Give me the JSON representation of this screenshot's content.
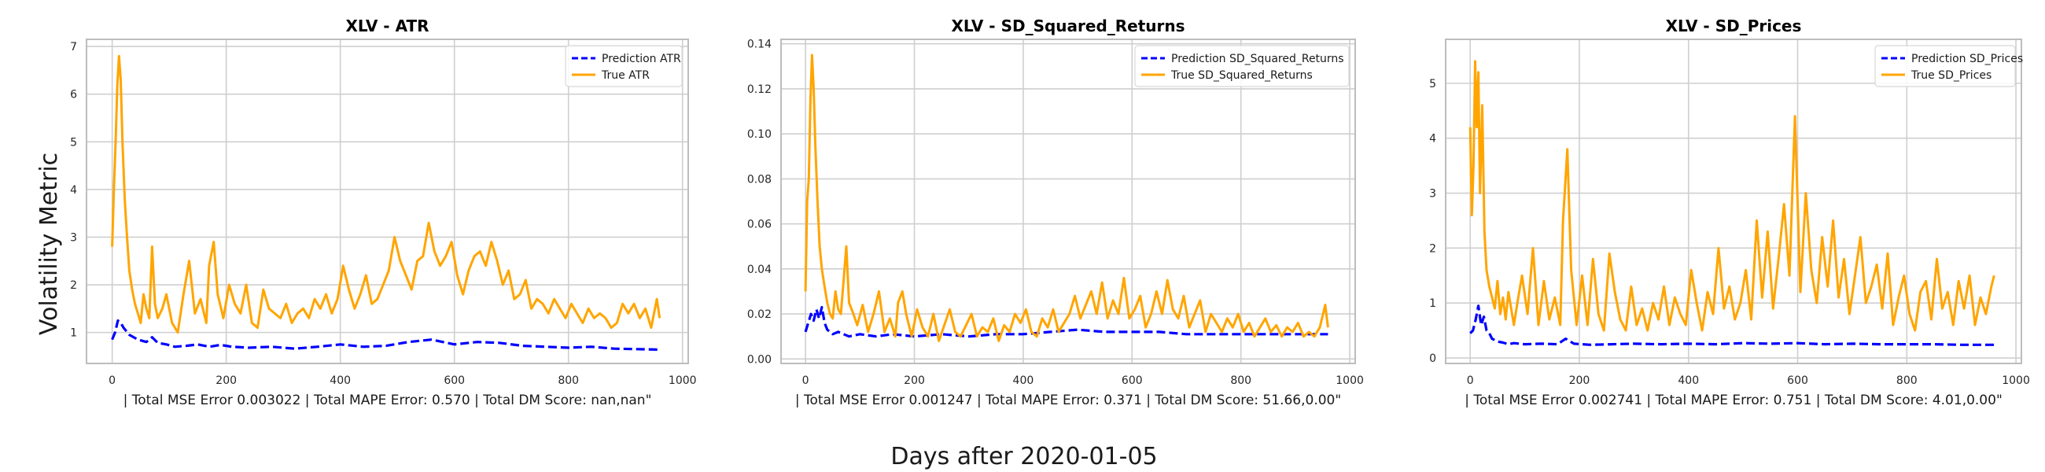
{
  "figure": {
    "ylabel": "Volatility Metric",
    "xlabel": "Days after 2020-01-05"
  },
  "colors": {
    "prediction": "#0000ff",
    "true": "#ffa500",
    "grid": "#cfcfcf",
    "spine": "#bdbdbd",
    "background": "#ffffff"
  },
  "chart_data": [
    {
      "type": "line",
      "title": "XLV - ATR",
      "xlabel": "| Total MSE Error 0.003022 | Total MAPE Error: 0.570 | Total DM Score: nan,nan\"",
      "ylabel": "",
      "xlim": [
        -45,
        1010
      ],
      "ylim": [
        0.35,
        7.15
      ],
      "xticks": [
        0,
        200,
        400,
        600,
        800,
        1000
      ],
      "yticks": [
        1,
        2,
        3,
        4,
        5,
        6,
        7
      ],
      "grid": true,
      "legend_position": "upper right",
      "series": [
        {
          "name": "Prediction ATR",
          "style": "dashed",
          "color": "#0000ff",
          "x": [
            0,
            5,
            10,
            15,
            20,
            30,
            45,
            60,
            70,
            80,
            95,
            110,
            130,
            150,
            170,
            190,
            210,
            240,
            280,
            320,
            360,
            400,
            440,
            480,
            520,
            560,
            600,
            640,
            680,
            720,
            760,
            800,
            840,
            880,
            920,
            960
          ],
          "y": [
            0.85,
            1.0,
            1.25,
            1.2,
            1.1,
            0.95,
            0.85,
            0.8,
            0.9,
            0.78,
            0.75,
            0.7,
            0.72,
            0.75,
            0.7,
            0.74,
            0.7,
            0.68,
            0.7,
            0.66,
            0.7,
            0.75,
            0.7,
            0.72,
            0.8,
            0.85,
            0.75,
            0.8,
            0.78,
            0.72,
            0.7,
            0.68,
            0.7,
            0.66,
            0.65,
            0.64
          ]
        },
        {
          "name": "True ATR",
          "style": "solid",
          "color": "#ffa500",
          "x": [
            0,
            3,
            6,
            9,
            12,
            15,
            18,
            22,
            26,
            30,
            35,
            40,
            45,
            50,
            55,
            60,
            65,
            70,
            75,
            80,
            88,
            95,
            105,
            115,
            125,
            135,
            145,
            155,
            165,
            170,
            178,
            185,
            195,
            205,
            215,
            225,
            235,
            245,
            255,
            265,
            275,
            285,
            295,
            305,
            315,
            325,
            335,
            345,
            355,
            365,
            375,
            385,
            395,
            405,
            415,
            425,
            435,
            445,
            455,
            465,
            475,
            485,
            495,
            505,
            515,
            525,
            535,
            545,
            555,
            565,
            575,
            585,
            595,
            605,
            615,
            625,
            635,
            645,
            655,
            665,
            675,
            685,
            695,
            705,
            715,
            725,
            735,
            745,
            755,
            765,
            775,
            785,
            795,
            805,
            815,
            825,
            835,
            845,
            855,
            865,
            875,
            885,
            895,
            905,
            915,
            925,
            935,
            945,
            955,
            960
          ],
          "y": [
            2.8,
            4.0,
            5.0,
            6.2,
            6.8,
            6.3,
            5.0,
            3.8,
            3.0,
            2.3,
            1.9,
            1.6,
            1.4,
            1.2,
            1.8,
            1.5,
            1.3,
            2.8,
            1.6,
            1.3,
            1.5,
            1.8,
            1.2,
            1.0,
            1.8,
            2.5,
            1.4,
            1.7,
            1.2,
            2.4,
            2.9,
            1.8,
            1.3,
            2.0,
            1.6,
            1.4,
            2.0,
            1.2,
            1.1,
            1.9,
            1.5,
            1.4,
            1.3,
            1.6,
            1.2,
            1.4,
            1.5,
            1.3,
            1.7,
            1.5,
            1.8,
            1.4,
            1.7,
            2.4,
            1.9,
            1.5,
            1.8,
            2.2,
            1.6,
            1.7,
            2.0,
            2.3,
            3.0,
            2.5,
            2.2,
            1.9,
            2.5,
            2.6,
            3.3,
            2.7,
            2.4,
            2.6,
            2.9,
            2.2,
            1.8,
            2.3,
            2.6,
            2.7,
            2.4,
            2.9,
            2.5,
            2.0,
            2.3,
            1.7,
            1.8,
            2.1,
            1.5,
            1.7,
            1.6,
            1.4,
            1.7,
            1.5,
            1.3,
            1.6,
            1.4,
            1.2,
            1.5,
            1.3,
            1.4,
            1.3,
            1.1,
            1.2,
            1.6,
            1.4,
            1.6,
            1.3,
            1.5,
            1.1,
            1.7,
            1.3
          ]
        }
      ]
    },
    {
      "type": "line",
      "title": "XLV - SD_Squared_Returns",
      "xlabel": "| Total MSE Error 0.001247 | Total MAPE Error: 0.371 | Total DM Score: 51.66,0.00\"",
      "ylabel": "",
      "xlim": [
        -45,
        1010
      ],
      "ylim": [
        -0.002,
        0.142
      ],
      "xticks": [
        0,
        200,
        400,
        600,
        800,
        1000
      ],
      "yticks": [
        0.0,
        0.02,
        0.04,
        0.06,
        0.08,
        0.1,
        0.12,
        0.14
      ],
      "ytick_labels": [
        "0.00",
        "0.02",
        "0.04",
        "0.06",
        "0.08",
        "0.10",
        "0.12",
        "0.14"
      ],
      "grid": true,
      "legend_position": "upper right",
      "series": [
        {
          "name": "Prediction SD_Squared_Returns",
          "style": "dashed",
          "color": "#0000ff",
          "x": [
            0,
            5,
            10,
            15,
            20,
            25,
            30,
            35,
            40,
            50,
            60,
            70,
            80,
            100,
            130,
            160,
            200,
            250,
            300,
            350,
            400,
            450,
            500,
            550,
            600,
            650,
            700,
            750,
            800,
            850,
            900,
            960
          ],
          "y": [
            0.012,
            0.016,
            0.02,
            0.017,
            0.022,
            0.018,
            0.023,
            0.016,
            0.013,
            0.011,
            0.012,
            0.011,
            0.01,
            0.011,
            0.01,
            0.011,
            0.01,
            0.011,
            0.01,
            0.011,
            0.011,
            0.012,
            0.013,
            0.012,
            0.012,
            0.012,
            0.011,
            0.011,
            0.011,
            0.011,
            0.011,
            0.011
          ]
        },
        {
          "name": "True SD_Squared_Returns",
          "style": "solid",
          "color": "#ffa500",
          "x": [
            0,
            3,
            6,
            9,
            12,
            15,
            18,
            22,
            26,
            30,
            35,
            40,
            45,
            50,
            55,
            60,
            65,
            70,
            75,
            80,
            88,
            95,
            105,
            115,
            125,
            135,
            145,
            155,
            165,
            170,
            178,
            185,
            195,
            205,
            215,
            225,
            235,
            245,
            255,
            265,
            275,
            285,
            295,
            305,
            315,
            325,
            335,
            345,
            355,
            365,
            375,
            385,
            395,
            405,
            415,
            425,
            435,
            445,
            455,
            465,
            475,
            485,
            495,
            505,
            515,
            525,
            535,
            545,
            555,
            565,
            575,
            585,
            595,
            605,
            615,
            625,
            635,
            645,
            655,
            665,
            675,
            685,
            695,
            705,
            715,
            725,
            735,
            745,
            755,
            765,
            775,
            785,
            795,
            805,
            815,
            825,
            835,
            845,
            855,
            865,
            875,
            885,
            895,
            905,
            915,
            925,
            935,
            945,
            955,
            960
          ],
          "y": [
            0.03,
            0.07,
            0.08,
            0.115,
            0.135,
            0.12,
            0.095,
            0.07,
            0.05,
            0.04,
            0.032,
            0.025,
            0.02,
            0.018,
            0.03,
            0.022,
            0.02,
            0.035,
            0.05,
            0.025,
            0.02,
            0.015,
            0.024,
            0.012,
            0.02,
            0.03,
            0.012,
            0.018,
            0.01,
            0.025,
            0.03,
            0.02,
            0.01,
            0.022,
            0.014,
            0.01,
            0.02,
            0.008,
            0.015,
            0.022,
            0.012,
            0.01,
            0.015,
            0.02,
            0.01,
            0.014,
            0.012,
            0.018,
            0.008,
            0.015,
            0.012,
            0.02,
            0.016,
            0.022,
            0.012,
            0.01,
            0.018,
            0.014,
            0.022,
            0.012,
            0.016,
            0.02,
            0.028,
            0.018,
            0.024,
            0.03,
            0.02,
            0.034,
            0.018,
            0.026,
            0.02,
            0.036,
            0.018,
            0.022,
            0.028,
            0.014,
            0.02,
            0.03,
            0.02,
            0.035,
            0.022,
            0.018,
            0.028,
            0.014,
            0.02,
            0.026,
            0.012,
            0.02,
            0.016,
            0.012,
            0.018,
            0.014,
            0.02,
            0.012,
            0.016,
            0.01,
            0.014,
            0.018,
            0.012,
            0.015,
            0.01,
            0.014,
            0.012,
            0.016,
            0.01,
            0.012,
            0.01,
            0.014,
            0.024,
            0.014
          ]
        }
      ]
    },
    {
      "type": "line",
      "title": "XLV - SD_Prices",
      "xlabel": "| Total MSE Error 0.002741 | Total MAPE Error: 0.751 | Total DM Score: 4.01,0.00\"",
      "ylabel": "",
      "xlim": [
        -45,
        1010
      ],
      "ylim": [
        -0.1,
        5.8
      ],
      "xticks": [
        0,
        200,
        400,
        600,
        800,
        1000
      ],
      "yticks": [
        0,
        1,
        2,
        3,
        4,
        5
      ],
      "grid": true,
      "legend_position": "upper right",
      "series": [
        {
          "name": "Prediction SD_Prices",
          "style": "dashed",
          "color": "#0000ff",
          "x": [
            0,
            5,
            10,
            15,
            20,
            25,
            30,
            35,
            40,
            50,
            60,
            70,
            80,
            100,
            130,
            160,
            175,
            190,
            220,
            260,
            300,
            350,
            400,
            450,
            500,
            550,
            600,
            650,
            700,
            750,
            800,
            850,
            900,
            960
          ],
          "y": [
            0.45,
            0.5,
            0.7,
            0.95,
            0.6,
            0.75,
            0.5,
            0.45,
            0.35,
            0.3,
            0.28,
            0.25,
            0.27,
            0.25,
            0.26,
            0.25,
            0.35,
            0.26,
            0.24,
            0.25,
            0.26,
            0.25,
            0.26,
            0.25,
            0.27,
            0.26,
            0.27,
            0.25,
            0.26,
            0.25,
            0.25,
            0.25,
            0.24,
            0.24
          ]
        },
        {
          "name": "True SD_Prices",
          "style": "solid",
          "color": "#ffa500",
          "x": [
            0,
            3,
            6,
            9,
            12,
            15,
            18,
            22,
            26,
            30,
            35,
            40,
            45,
            50,
            55,
            60,
            65,
            70,
            75,
            80,
            88,
            95,
            105,
            115,
            125,
            135,
            145,
            155,
            165,
            170,
            178,
            185,
            195,
            205,
            215,
            225,
            235,
            245,
            255,
            265,
            275,
            285,
            295,
            305,
            315,
            325,
            335,
            345,
            355,
            365,
            375,
            385,
            395,
            405,
            415,
            425,
            435,
            445,
            455,
            465,
            475,
            485,
            495,
            505,
            515,
            525,
            535,
            545,
            555,
            565,
            575,
            585,
            595,
            605,
            615,
            625,
            635,
            645,
            655,
            665,
            675,
            685,
            695,
            705,
            715,
            725,
            735,
            745,
            755,
            765,
            775,
            785,
            795,
            805,
            815,
            825,
            835,
            845,
            855,
            865,
            875,
            885,
            895,
            905,
            915,
            925,
            935,
            945,
            955,
            960
          ],
          "y": [
            4.2,
            2.6,
            3.5,
            5.4,
            4.2,
            5.2,
            3.0,
            4.6,
            2.3,
            1.6,
            1.3,
            1.1,
            0.9,
            1.4,
            0.8,
            1.1,
            0.7,
            1.2,
            0.9,
            0.6,
            1.1,
            1.5,
            0.8,
            2.0,
            0.6,
            1.4,
            0.7,
            1.1,
            0.6,
            2.5,
            3.8,
            1.6,
            0.6,
            1.5,
            0.6,
            1.8,
            0.8,
            0.5,
            1.9,
            1.2,
            0.7,
            0.5,
            1.3,
            0.6,
            0.9,
            0.5,
            1.0,
            0.7,
            1.3,
            0.6,
            1.1,
            0.8,
            0.6,
            1.6,
            1.0,
            0.5,
            1.2,
            0.8,
            2.0,
            0.9,
            1.3,
            0.7,
            1.0,
            1.6,
            0.7,
            2.5,
            1.1,
            2.3,
            0.9,
            1.8,
            2.8,
            1.5,
            4.4,
            1.2,
            3.0,
            1.6,
            1.0,
            2.2,
            1.3,
            2.5,
            1.1,
            1.8,
            0.8,
            1.5,
            2.2,
            1.0,
            1.3,
            1.7,
            0.9,
            1.9,
            0.6,
            1.1,
            1.5,
            0.8,
            0.5,
            1.2,
            1.4,
            0.7,
            1.8,
            0.9,
            1.2,
            0.6,
            1.4,
            0.9,
            1.5,
            0.6,
            1.1,
            0.8,
            1.3,
            1.5
          ]
        }
      ]
    }
  ]
}
